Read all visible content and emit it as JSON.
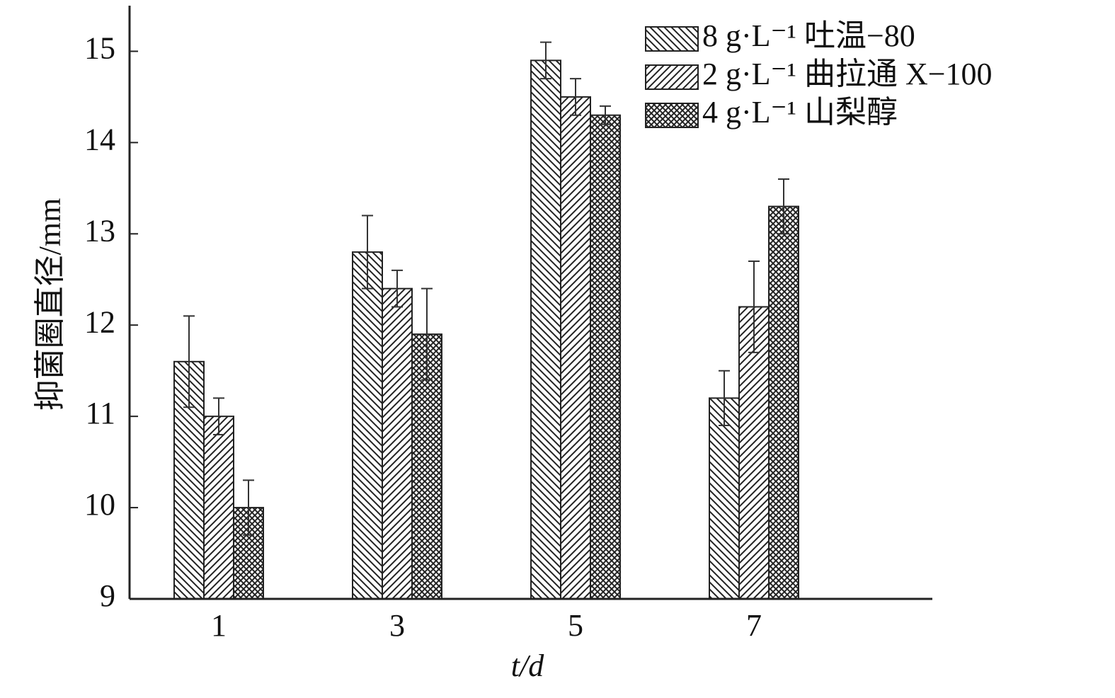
{
  "chart_data": {
    "type": "bar",
    "y_label": "抑菌圈直径/mm",
    "x_label": "t/d",
    "categories": [
      "1",
      "3",
      "5",
      "7"
    ],
    "series": [
      {
        "name": "8 g·L⁻¹ 吐温−80",
        "values": [
          11.6,
          12.8,
          14.9,
          11.2
        ],
        "errors": [
          0.5,
          0.4,
          0.2,
          0.3
        ]
      },
      {
        "name": "2 g·L⁻¹ 曲拉通 X−100",
        "values": [
          11.0,
          12.4,
          14.5,
          12.2
        ],
        "errors": [
          0.2,
          0.2,
          0.2,
          0.5
        ]
      },
      {
        "name": "4 g·L⁻¹ 山梨醇",
        "values": [
          10.0,
          11.9,
          14.3,
          13.3
        ],
        "errors": [
          0.3,
          0.5,
          0.1,
          0.3
        ]
      }
    ],
    "ylim": [
      9,
      15.5
    ],
    "yticks": [
      9,
      10,
      11,
      12,
      13,
      14,
      15
    ],
    "legend": "upper right"
  }
}
